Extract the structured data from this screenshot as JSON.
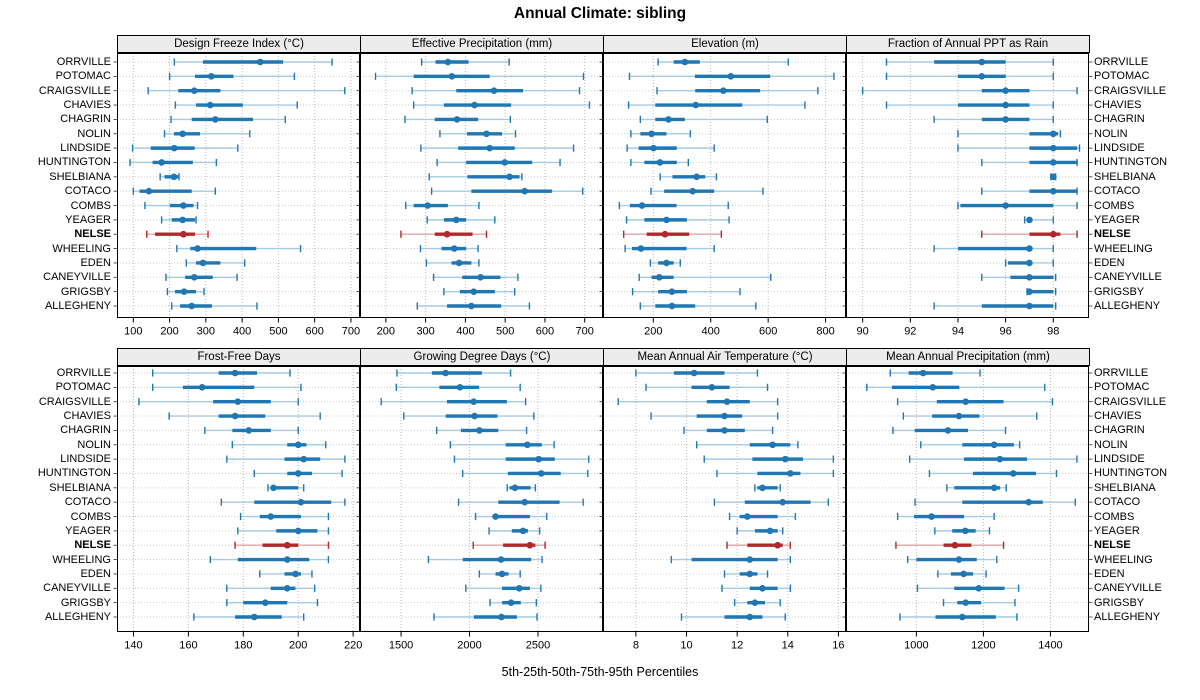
{
  "chart_data": {
    "type": "dot-interval",
    "title": "Annual Climate: sibling",
    "caption": "5th-25th-50th-75th-95th Percentiles",
    "percentiles": [
      5,
      25,
      50,
      75,
      95
    ],
    "legend_position": "none",
    "grid": "dotted",
    "layout": {
      "rows": 2,
      "cols": 4
    },
    "sites": [
      "ORRVILLE",
      "POTOMAC",
      "CRAIGSVILLE",
      "CHAVIES",
      "CHAGRIN",
      "NOLIN",
      "LINDSIDE",
      "HUNTINGTON",
      "SHELBIANA",
      "COTACO",
      "COMBS",
      "YEAGER",
      "NELSE",
      "WHEELING",
      "EDEN",
      "CANEYVILLE",
      "GRIGSBY",
      "ALLEGHENY"
    ],
    "highlight_site": "NELSE",
    "colors": {
      "series": "#1f77b4",
      "series_light": "#a6cbe3",
      "highlight": "#b0282a",
      "highlight_light": "#dfa7a4",
      "strip_bg": "#ececec",
      "grid_v": "#b9b9b9",
      "grid_h": "#cccccc",
      "border": "#000000"
    },
    "panels": [
      {
        "title": "Design Freeze Index (°C)",
        "xlim": [
          55,
          725
        ],
        "ticks": [
          100,
          200,
          300,
          400,
          500,
          600,
          700
        ],
        "series": [
          [
            213,
            292,
            450,
            513,
            648
          ],
          [
            200,
            270,
            315,
            376,
            544
          ],
          [
            141,
            224,
            268,
            340,
            683
          ],
          [
            216,
            273,
            312,
            402,
            552
          ],
          [
            204,
            261,
            326,
            430,
            519
          ],
          [
            186,
            212,
            236,
            284,
            421
          ],
          [
            98,
            148,
            213,
            269,
            388
          ],
          [
            91,
            153,
            178,
            264,
            329
          ],
          [
            174,
            186,
            212,
            224,
            226
          ],
          [
            100,
            117,
            143,
            261,
            326
          ],
          [
            132,
            201,
            238,
            266,
            277
          ],
          [
            178,
            206,
            236,
            270,
            273
          ],
          [
            137,
            160,
            238,
            270,
            306
          ],
          [
            220,
            257,
            277,
            439,
            561
          ],
          [
            246,
            273,
            292,
            340,
            407
          ],
          [
            190,
            243,
            268,
            319,
            386
          ],
          [
            194,
            215,
            240,
            273,
            295
          ],
          [
            206,
            229,
            261,
            317,
            441
          ]
        ]
      },
      {
        "title": "Effective Precipitation (mm)",
        "xlim": [
          135,
          746
        ],
        "ticks": [
          200,
          300,
          400,
          500,
          600,
          700
        ],
        "series": [
          [
            290,
            325,
            356,
            408,
            510
          ],
          [
            174,
            270,
            366,
            461,
            697
          ],
          [
            266,
            377,
            472,
            545,
            687
          ],
          [
            270,
            346,
            423,
            515,
            712
          ],
          [
            248,
            323,
            379,
            432,
            513
          ],
          [
            336,
            404,
            453,
            492,
            526
          ],
          [
            288,
            382,
            461,
            524,
            672
          ],
          [
            329,
            402,
            499,
            568,
            638
          ],
          [
            309,
            405,
            511,
            536,
            542
          ],
          [
            315,
            415,
            549,
            618,
            695
          ],
          [
            250,
            270,
            305,
            356,
            434
          ],
          [
            304,
            346,
            377,
            402,
            474
          ],
          [
            238,
            323,
            354,
            418,
            453
          ],
          [
            287,
            340,
            372,
            402,
            432
          ],
          [
            302,
            365,
            384,
            415,
            434
          ],
          [
            320,
            392,
            438,
            488,
            532
          ],
          [
            346,
            386,
            421,
            474,
            524
          ],
          [
            279,
            354,
            415,
            490,
            561
          ]
        ]
      },
      {
        "title": "Elevation (m)",
        "xlim": [
          25,
          871
        ],
        "ticks": [
          200,
          400,
          600,
          800
        ],
        "series": [
          [
            217,
            271,
            310,
            362,
            670
          ],
          [
            117,
            345,
            470,
            607,
            829
          ],
          [
            213,
            346,
            444,
            572,
            773
          ],
          [
            114,
            207,
            348,
            510,
            728
          ],
          [
            155,
            207,
            253,
            310,
            597
          ],
          [
            122,
            155,
            194,
            246,
            329
          ],
          [
            109,
            149,
            201,
            282,
            412
          ],
          [
            122,
            169,
            223,
            282,
            322
          ],
          [
            224,
            267,
            351,
            381,
            420
          ],
          [
            192,
            238,
            337,
            412,
            582
          ],
          [
            82,
            119,
            161,
            281,
            461
          ],
          [
            107,
            169,
            246,
            317,
            464
          ],
          [
            97,
            177,
            241,
            325,
            437
          ],
          [
            102,
            126,
            157,
            316,
            412
          ],
          [
            190,
            217,
            246,
            271,
            294
          ],
          [
            151,
            194,
            221,
            271,
            609
          ],
          [
            128,
            217,
            265,
            317,
            502
          ],
          [
            155,
            207,
            265,
            346,
            557
          ]
        ]
      },
      {
        "title": "Fraction of Annual PPT as Rain",
        "xlim": [
          89.3,
          99.5
        ],
        "ticks": [
          90,
          92,
          94,
          96,
          98
        ],
        "series": [
          [
            91.0,
            93.0,
            95.0,
            96.0,
            98.0
          ],
          [
            91.0,
            94.0,
            95.0,
            96.0,
            98.0
          ],
          [
            90.0,
            95.0,
            96.0,
            97.0,
            99.0
          ],
          [
            91.0,
            94.0,
            96.0,
            97.0,
            98.0
          ],
          [
            93.0,
            95.0,
            96.0,
            97.0,
            98.0
          ],
          [
            94.0,
            97.0,
            98.0,
            98.2,
            98.3
          ],
          [
            94.0,
            97.0,
            98.0,
            99.0,
            99.1
          ],
          [
            95.0,
            97.0,
            98.0,
            99.0,
            99.0
          ],
          [
            97.9,
            98.0,
            98.0,
            98.0,
            98.1
          ],
          [
            95.0,
            97.0,
            98.0,
            99.0,
            99.0
          ],
          [
            94.0,
            94.1,
            96.0,
            98.0,
            99.0
          ],
          [
            96.8,
            96.9,
            97.0,
            97.1,
            98.0
          ],
          [
            95.0,
            97.0,
            98.0,
            98.3,
            99.0
          ],
          [
            93.0,
            94.0,
            97.0,
            97.1,
            98.0
          ],
          [
            96.0,
            96.1,
            97.0,
            97.1,
            98.0
          ],
          [
            95.0,
            96.2,
            97.0,
            98.0,
            98.1
          ],
          [
            96.9,
            97.0,
            97.0,
            98.0,
            98.1
          ],
          [
            93.0,
            95.0,
            97.0,
            98.0,
            98.1
          ]
        ]
      },
      {
        "title": "Frost-Free Days",
        "xlim": [
          134,
          222.5
        ],
        "ticks": [
          140,
          160,
          180,
          200,
          220
        ],
        "series": [
          [
            147,
            171,
            177,
            185,
            197
          ],
          [
            147,
            158,
            165,
            184,
            201
          ],
          [
            142,
            169,
            178,
            190,
            200
          ],
          [
            153,
            171,
            177,
            188,
            208
          ],
          [
            166,
            176,
            182,
            190,
            200
          ],
          [
            176,
            196,
            200,
            203,
            210
          ],
          [
            174,
            195,
            202,
            208,
            217
          ],
          [
            184,
            196,
            200,
            205,
            216
          ],
          [
            189,
            190,
            191,
            200,
            202
          ],
          [
            172,
            184,
            201,
            212,
            217
          ],
          [
            179,
            186,
            190,
            201,
            211
          ],
          [
            178,
            192,
            200,
            207,
            211
          ],
          [
            177,
            187,
            196,
            200,
            211
          ],
          [
            168,
            178,
            196,
            204,
            211
          ],
          [
            186,
            195,
            199,
            201,
            205
          ],
          [
            174,
            190,
            196,
            199,
            206
          ],
          [
            174,
            180,
            188,
            196,
            207
          ],
          [
            162,
            177,
            184,
            194,
            202
          ]
        ]
      },
      {
        "title": "Growing Degree Days (°C)",
        "xlim": [
          1200,
          2975
        ],
        "ticks": [
          1500,
          2000,
          2500
        ],
        "series": [
          [
            1470,
            1725,
            1825,
            2090,
            2300
          ],
          [
            1465,
            1780,
            1930,
            2070,
            2370
          ],
          [
            1355,
            1835,
            2030,
            2273,
            2410
          ],
          [
            1520,
            1826,
            2037,
            2204,
            2470
          ],
          [
            1760,
            1937,
            2072,
            2210,
            2417
          ],
          [
            1860,
            2264,
            2422,
            2528,
            2618
          ],
          [
            1890,
            2264,
            2505,
            2623,
            2871
          ],
          [
            1950,
            2280,
            2524,
            2666,
            2864
          ],
          [
            2275,
            2292,
            2332,
            2446,
            2481
          ],
          [
            1920,
            2210,
            2403,
            2658,
            2830
          ],
          [
            2044,
            2180,
            2190,
            2441,
            2564
          ],
          [
            2143,
            2309,
            2391,
            2427,
            2512
          ],
          [
            2027,
            2245,
            2441,
            2481,
            2552
          ],
          [
            1700,
            1950,
            2230,
            2450,
            2530
          ],
          [
            2072,
            2190,
            2238,
            2285,
            2370
          ],
          [
            1973,
            2238,
            2363,
            2441,
            2521
          ],
          [
            2150,
            2238,
            2304,
            2375,
            2488
          ],
          [
            1741,
            2032,
            2233,
            2346,
            2493
          ]
        ]
      },
      {
        "title": "Mean Annual Air Temperature (°C)",
        "xlim": [
          6.7,
          16.3
        ],
        "ticks": [
          8,
          10,
          12,
          14,
          16
        ],
        "series": [
          [
            8.0,
            9.5,
            10.3,
            11.5,
            12.8
          ],
          [
            8.4,
            10.2,
            11.0,
            11.7,
            13.2
          ],
          [
            7.3,
            10.8,
            11.6,
            12.5,
            13.6
          ],
          [
            8.6,
            10.4,
            11.5,
            12.2,
            13.6
          ],
          [
            9.9,
            10.8,
            11.5,
            12.3,
            13.4
          ],
          [
            10.4,
            12.5,
            13.4,
            14.1,
            14.4
          ],
          [
            10.7,
            12.6,
            13.9,
            14.6,
            15.8
          ],
          [
            11.2,
            12.8,
            14.1,
            14.5,
            15.8
          ],
          [
            12.7,
            12.8,
            13.0,
            13.6,
            13.7
          ],
          [
            11.1,
            12.3,
            13.8,
            14.9,
            15.6
          ],
          [
            11.7,
            12.1,
            12.4,
            13.6,
            14.3
          ],
          [
            12.0,
            12.7,
            13.3,
            13.6,
            13.8
          ],
          [
            11.6,
            12.4,
            13.6,
            13.8,
            14.1
          ],
          [
            9.4,
            10.2,
            12.5,
            13.6,
            14.1
          ],
          [
            11.5,
            12.1,
            12.5,
            12.8,
            13.2
          ],
          [
            11.4,
            12.5,
            13.0,
            13.6,
            14.1
          ],
          [
            11.9,
            12.4,
            12.7,
            13.1,
            13.7
          ],
          [
            9.8,
            11.5,
            12.5,
            13.0,
            13.9
          ]
        ]
      },
      {
        "title": "Mean Annual Precipitation (mm)",
        "xlim": [
          790,
          1515
        ],
        "ticks": [
          1000,
          1200,
          1400
        ],
        "series": [
          [
            922,
            977,
            1020,
            1108,
            1190
          ],
          [
            852,
            927,
            1049,
            1128,
            1383
          ],
          [
            944,
            1061,
            1147,
            1260,
            1406
          ],
          [
            961,
            1047,
            1127,
            1188,
            1359
          ],
          [
            930,
            995,
            1094,
            1154,
            1266
          ],
          [
            1013,
            1137,
            1232,
            1291,
            1308
          ],
          [
            980,
            1142,
            1249,
            1330,
            1479
          ],
          [
            1039,
            1169,
            1289,
            1357,
            1418
          ],
          [
            1091,
            1113,
            1232,
            1250,
            1268
          ],
          [
            996,
            1137,
            1335,
            1377,
            1474
          ],
          [
            944,
            993,
            1045,
            1142,
            1232
          ],
          [
            1055,
            1107,
            1146,
            1177,
            1218
          ],
          [
            939,
            1081,
            1115,
            1164,
            1260
          ],
          [
            974,
            1000,
            1127,
            1180,
            1240
          ],
          [
            1064,
            1103,
            1141,
            1169,
            1208
          ],
          [
            1003,
            1113,
            1186,
            1263,
            1305
          ],
          [
            1081,
            1122,
            1147,
            1193,
            1294
          ],
          [
            951,
            1057,
            1137,
            1237,
            1300
          ]
        ]
      }
    ]
  }
}
